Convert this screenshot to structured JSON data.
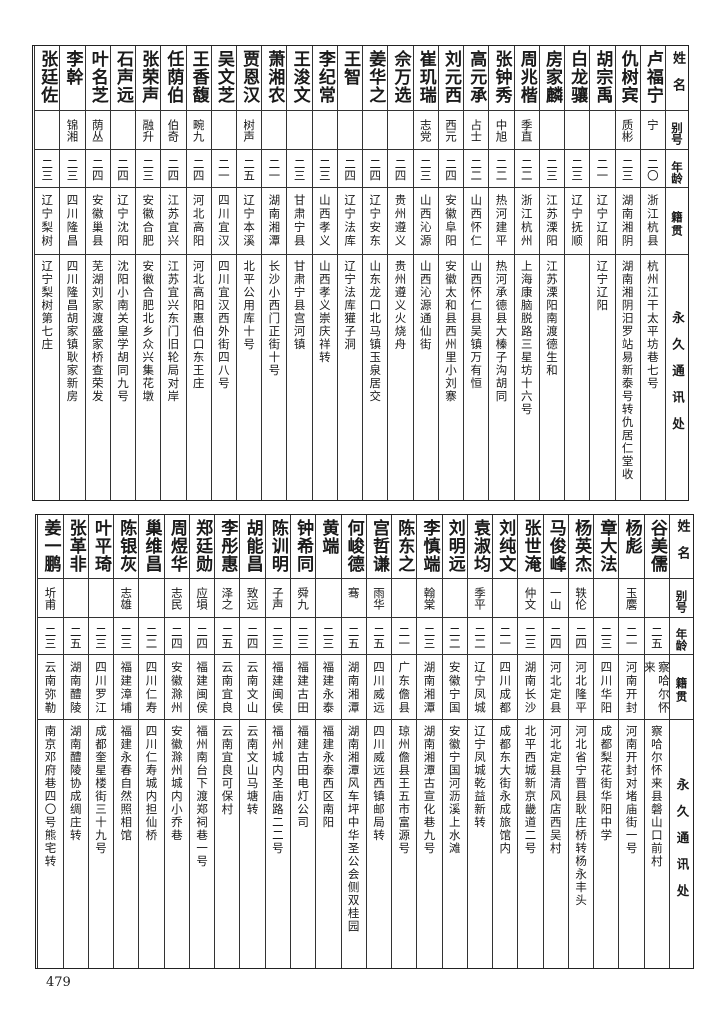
{
  "page_number": "479",
  "tables": [
    {
      "header": {
        "name": "姓名",
        "alias": "别号",
        "age": "年龄",
        "native": "籍贯",
        "address": "永久通讯处"
      },
      "rows": [
        [
          "卢福宁",
          "宁",
          "二〇",
          "浙江杭县",
          "杭州江干太平坊巷七号"
        ],
        [
          "仇树宾",
          "质彬",
          "二三",
          "湖南湘阴",
          "湖南湘阴汨罗站易新泰号转仇居仁堂收"
        ],
        [
          "胡宗禹",
          "",
          "二一",
          "辽宁辽阳",
          "辽宁辽阳"
        ],
        [
          "白龙骧",
          "",
          "二三",
          "辽宁抚顺",
          ""
        ],
        [
          "房家麟",
          "",
          "二三",
          "江苏溧阳",
          "江苏溧阳南渡德生和"
        ],
        [
          "周兆楷",
          "季直",
          "二二",
          "浙江杭州",
          "上海康脑脱路三星坊十六号"
        ],
        [
          "张钟秀",
          "中旭",
          "二二",
          "热河建平",
          "热河承德县大榛子沟胡同"
        ],
        [
          "高元承",
          "占士",
          "二二",
          "山西怀仁",
          "山西怀仁县吴镇万有恒"
        ],
        [
          "刘元西",
          "西元",
          "二四",
          "安徽阜阳",
          "安徽太和县西州里小刘寨"
        ],
        [
          "崔玑瑞",
          "志党",
          "二三",
          "山西沁源",
          "山西沁源通仙街"
        ],
        [
          "佘万选",
          "",
          "二四",
          "贵州遵义",
          "贵州遵义火烧舟"
        ],
        [
          "姜华之",
          "",
          "二四",
          "辽宁安东",
          "山东龙口北马镇玉泉居交"
        ],
        [
          "王智",
          "",
          "二四",
          "辽宁法库",
          "辽宁法库獾子洞"
        ],
        [
          "李纪常",
          "",
          "二三",
          "山西孝义",
          "山西孝义崇庆祥转"
        ],
        [
          "王浚文",
          "",
          "二三",
          "甘肃宁县",
          "甘肃宁县宫河镇"
        ],
        [
          "萧湘农",
          "",
          "二一",
          "湖南湘潭",
          "长沙小西门正街十号"
        ],
        [
          "贾恩汉",
          "树声",
          "二五",
          "辽宁本溪",
          "北平公用库十号"
        ],
        [
          "吴文芝",
          "",
          "二一",
          "四川宜汉",
          "四川宜汉西外街四八号"
        ],
        [
          "王香馥",
          "畹九",
          "二四",
          "河北高阳",
          "河北高阳惠伯口东王庄"
        ],
        [
          "任荫伯",
          "伯奇",
          "二四",
          "江苏宜兴",
          "江苏宜兴东门旧轮局对岸"
        ],
        [
          "张荣声",
          "融升",
          "二三",
          "安徽合肥",
          "安徽合肥北乡众兴集花墩"
        ],
        [
          "石声远",
          "",
          "二四",
          "辽宁沈阳",
          "沈阳小南关皇学胡同九号"
        ],
        [
          "叶名芝",
          "荫丛",
          "二四",
          "安徽巢县",
          "芜湖刘家渡盛家桥查荣发"
        ],
        [
          "李幹",
          "锦湘",
          "二三",
          "四川隆昌",
          "四川隆昌胡家镇耿家新房"
        ],
        [
          "张廷佐",
          "",
          "二三",
          "辽宁梨树",
          "辽宁梨树第七庄"
        ]
      ]
    },
    {
      "header": {
        "name": "姓名",
        "alias": "别号",
        "age": "年龄",
        "native": "籍贯",
        "address": "永久通讯处"
      },
      "rows": [
        [
          "谷美儒",
          "",
          "二五",
          "察哈尔怀来",
          "察哈尔怀来县磐山口前村"
        ],
        [
          "杨彪",
          "玉麐",
          "二一",
          "河南开封",
          "河南开封对堵庙街一号"
        ],
        [
          "章大法",
          "",
          "二三",
          "四川华阳",
          "成都梨花街华阳中学"
        ],
        [
          "杨英杰",
          "轶伦",
          "二四",
          "河北隆平",
          "河北省宁晋县耿庄桥转杨永丰头"
        ],
        [
          "马俊峰",
          "一山",
          "二四",
          "河北定县",
          "河北定县清风店西吴村"
        ],
        [
          "张世淹",
          "仲文",
          "二三",
          "湖南长沙",
          "北平西城新京畿道二号"
        ],
        [
          "刘纯文",
          "",
          "二一",
          "四川成都",
          "成都东大街永成旅馆内"
        ],
        [
          "袁淑均",
          "季平",
          "二二",
          "辽宁凤城",
          "辽宁凤城乾益新转"
        ],
        [
          "刘明远",
          "",
          "二二",
          "安徽宁国",
          "安徽宁国河沥溪上水滩"
        ],
        [
          "李慎端",
          "翰棠",
          "二三",
          "湖南湘潭",
          "湖南湘潭古宣化巷九号"
        ],
        [
          "陈东之",
          "",
          "二一",
          "广东儋县",
          "琼州儋县王五市富源号"
        ],
        [
          "宫哲谦",
          "雨华",
          "二五",
          "四川威远",
          "四川威远西镇邮局转"
        ],
        [
          "何峻德",
          "骞",
          "二五",
          "湖南湘潭",
          "湖南湘潭风车坪中华圣公会侧双桂园"
        ],
        [
          "黄端",
          "",
          "二三",
          "福建永泰",
          "福建永泰西区南阳"
        ],
        [
          "钟希同",
          "舜九",
          "二三",
          "福建古田",
          "福建古田电灯公司"
        ],
        [
          "陈训明",
          "子声",
          "二三",
          "福建闽侯",
          "福州城内圣庙路二二号"
        ],
        [
          "胡能昌",
          "致远",
          "二四",
          "云南文山",
          "云南文山马塘转"
        ],
        [
          "李彤惠",
          "泽之",
          "二五",
          "云南宜良",
          "云南宜良可保村"
        ],
        [
          "郑廷勋",
          "应塤",
          "二四",
          "福建闽侯",
          "福州南台下渡郑祠巷一号"
        ],
        [
          "周煜华",
          "志民",
          "二四",
          "安徽滁州",
          "安徽滁州城内小乔巷"
        ],
        [
          "巢维昌",
          "",
          "二二",
          "四川仁寿",
          "四川仁寿城内担仙桥"
        ],
        [
          "陈银灰",
          "志雄",
          "二三",
          "福建漳埔",
          "福建永春自然照相馆"
        ],
        [
          "叶平琦",
          "",
          "二三",
          "四川罗江",
          "成都奎星楼街三十九号"
        ],
        [
          "张革非",
          "",
          "二五",
          "湖南醴陵",
          "湖南醴陵协成绸庄转"
        ],
        [
          "姜一鹏",
          "圻甫",
          "二三",
          "云南弥勒",
          "南京邓府巷四〇号熊宅转"
        ]
      ]
    }
  ]
}
